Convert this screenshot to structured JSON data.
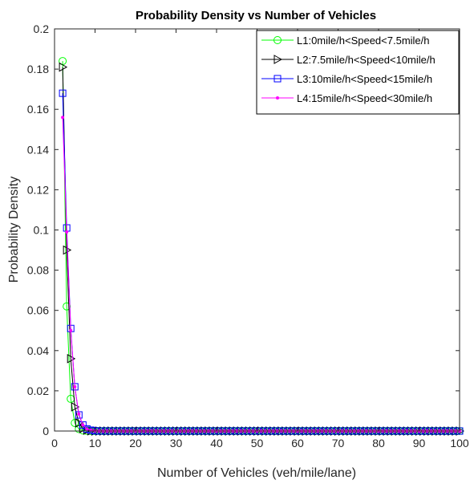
{
  "chart_data": {
    "type": "line",
    "title": "Probability Density vs Number of Vehicles",
    "xlabel": "Number of Vehicles (veh/mile/lane)",
    "ylabel": "Probability Density",
    "xlim": [
      0,
      100
    ],
    "ylim": [
      0,
      0.2
    ],
    "xticks": [
      0,
      10,
      20,
      30,
      40,
      50,
      60,
      70,
      80,
      90,
      100
    ],
    "yticks": [
      0,
      0.02,
      0.04,
      0.06,
      0.08,
      0.1,
      0.12,
      0.14,
      0.16,
      0.18,
      0.2
    ],
    "grid": false,
    "legend_position": "top-right",
    "x": [
      2,
      3,
      4,
      5,
      6,
      7,
      8,
      9,
      10,
      11,
      12,
      13,
      14,
      15,
      16,
      17,
      18,
      19,
      20,
      21,
      22,
      23,
      24,
      25,
      26,
      27,
      28,
      29,
      30,
      31,
      32,
      33,
      34,
      35,
      36,
      37,
      38,
      39,
      40,
      41,
      42,
      43,
      44,
      45,
      46,
      47,
      48,
      49,
      50,
      51,
      52,
      53,
      54,
      55,
      56,
      57,
      58,
      59,
      60,
      61,
      62,
      63,
      64,
      65,
      66,
      67,
      68,
      69,
      70,
      71,
      72,
      73,
      74,
      75,
      76,
      77,
      78,
      79,
      80,
      81,
      82,
      83,
      84,
      85,
      86,
      87,
      88,
      89,
      90,
      91,
      92,
      93,
      94,
      95,
      96,
      97,
      98,
      99,
      100
    ],
    "series": [
      {
        "name": "L1:0mile/h<Speed<7.5mile/h",
        "color": "#00ff00",
        "marker": "circle",
        "values": [
          0.184,
          0.062,
          0.016,
          0.004,
          0.001,
          0.0003,
          0.0001,
          0,
          0,
          0,
          0,
          0,
          0,
          0,
          0,
          0,
          0,
          0,
          0,
          0,
          0,
          0,
          0,
          0,
          0,
          0,
          0,
          0,
          0,
          0,
          0,
          0,
          0,
          0,
          0,
          0,
          0,
          0,
          0,
          0,
          0,
          0,
          0,
          0,
          0,
          0,
          0,
          0,
          0,
          0,
          0,
          0,
          0,
          0,
          0,
          0,
          0,
          0,
          0,
          0,
          0,
          0,
          0,
          0,
          0,
          0,
          0,
          0,
          0,
          0,
          0,
          0,
          0,
          0,
          0,
          0,
          0,
          0,
          0,
          0,
          0,
          0,
          0,
          0,
          0,
          0,
          0,
          0,
          0,
          0,
          0,
          0,
          0,
          0,
          0,
          0,
          0,
          0,
          0
        ]
      },
      {
        "name": "L2:7.5mile/h<Speed<10mile/h",
        "color": "#000000",
        "marker": "triangle-right",
        "values": [
          0.181,
          0.09,
          0.036,
          0.012,
          0.004,
          0.0012,
          0.0004,
          0.0001,
          0,
          0,
          0,
          0,
          0,
          0,
          0,
          0,
          0,
          0,
          0,
          0,
          0,
          0,
          0,
          0,
          0,
          0,
          0,
          0,
          0,
          0,
          0,
          0,
          0,
          0,
          0,
          0,
          0,
          0,
          0,
          0,
          0,
          0,
          0,
          0,
          0,
          0,
          0,
          0,
          0,
          0,
          0,
          0,
          0,
          0,
          0,
          0,
          0,
          0,
          0,
          0,
          0,
          0,
          0,
          0,
          0,
          0,
          0,
          0,
          0,
          0,
          0,
          0,
          0,
          0,
          0,
          0,
          0,
          0,
          0,
          0,
          0,
          0,
          0,
          0,
          0,
          0,
          0,
          0,
          0,
          0,
          0,
          0,
          0,
          0,
          0,
          0,
          0,
          0,
          0
        ]
      },
      {
        "name": "L3:10mile/h<Speed<15mile/h",
        "color": "#0000ff",
        "marker": "square",
        "values": [
          0.168,
          0.101,
          0.051,
          0.022,
          0.008,
          0.003,
          0.001,
          0.0004,
          0.0001,
          0,
          0,
          0,
          0,
          0,
          0,
          0,
          0,
          0,
          0,
          0,
          0,
          0,
          0,
          0,
          0,
          0,
          0,
          0,
          0,
          0,
          0,
          0,
          0,
          0,
          0,
          0,
          0,
          0,
          0,
          0,
          0,
          0,
          0,
          0,
          0,
          0,
          0,
          0,
          0,
          0,
          0,
          0,
          0,
          0,
          0,
          0,
          0,
          0,
          0,
          0,
          0,
          0,
          0,
          0,
          0,
          0,
          0,
          0,
          0,
          0,
          0,
          0,
          0,
          0,
          0,
          0,
          0,
          0,
          0,
          0,
          0,
          0,
          0,
          0,
          0,
          0,
          0,
          0,
          0,
          0,
          0,
          0,
          0,
          0,
          0,
          0,
          0,
          0,
          0
        ]
      },
      {
        "name": "L4:15mile/h<Speed<30mile/h",
        "color": "#ff00ff",
        "marker": "point",
        "values": [
          0.156,
          0.099,
          0.05,
          0.022,
          0.0085,
          0.003,
          0.001,
          0.0004,
          0.0001,
          0,
          0,
          0,
          0,
          0,
          0,
          0,
          0,
          0,
          0,
          0,
          0,
          0,
          0,
          0,
          0,
          0,
          0,
          0,
          0,
          0,
          0,
          0,
          0,
          0,
          0,
          0,
          0,
          0,
          0,
          0,
          0,
          0,
          0,
          0,
          0,
          0,
          0,
          0,
          0,
          0,
          0,
          0,
          0,
          0,
          0,
          0,
          0,
          0,
          0,
          0,
          0,
          0,
          0,
          0,
          0,
          0,
          0,
          0,
          0,
          0,
          0,
          0,
          0,
          0,
          0,
          0,
          0,
          0,
          0,
          0,
          0,
          0,
          0,
          0,
          0,
          0,
          0,
          0,
          0,
          0,
          0,
          0,
          0,
          0,
          0,
          0,
          0,
          0,
          0
        ]
      }
    ]
  }
}
